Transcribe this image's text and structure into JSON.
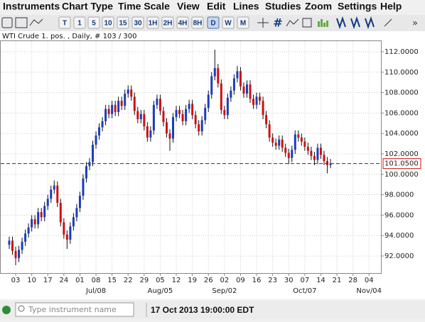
{
  "menu": [
    "Instruments",
    "Chart Type",
    "Time Scale",
    "View",
    "Edit",
    "Lines",
    "Studies",
    "Zoom",
    "Settings",
    "Help"
  ],
  "toolbar": {
    "timeframes": [
      "T",
      "1",
      "5",
      "10",
      "15",
      "30",
      "1H",
      "2H",
      "4H",
      "8H",
      "D",
      "W",
      "M"
    ]
  },
  "chart_data": {
    "type": "candlestick",
    "title": "WTI Crude 1. pos. , Daily, # 103 / 300",
    "up_color": "#1a3cc0",
    "down_color": "#cc1111",
    "open": [
      93.1,
      93.5,
      92.5,
      91.8,
      92.6,
      93.4,
      94.2,
      94.8,
      95.6,
      95.1,
      96.3,
      95.8,
      96.9,
      97.6,
      98.5,
      98.9,
      97.2,
      95.3,
      94.1,
      93.6,
      94.9,
      95.8,
      96.7,
      97.9,
      99.6,
      100.8,
      101.2,
      102.9,
      103.8,
      104.6,
      105.2,
      106.4,
      105.9,
      106.8,
      106.1,
      107.2,
      106.7,
      107.9,
      108.3,
      107.6,
      106.2,
      105.4,
      105.9,
      104.7,
      103.6,
      104.3,
      106.8,
      107.4,
      106.2,
      105.1,
      104.0,
      103.5,
      105.6,
      106.3,
      105.9,
      105.2,
      106.4,
      106.9,
      105.8,
      104.9,
      104.2,
      105.3,
      106.5,
      107.8,
      109.6,
      110.4,
      108.9,
      106.3,
      105.8,
      107.5,
      108.2,
      109.4,
      110.1,
      108.6,
      107.9,
      108.8,
      107.4,
      106.8,
      107.6,
      107.2,
      105.8,
      104.9,
      103.6,
      103.1,
      102.8,
      103.4,
      102.6,
      102.1,
      101.6,
      102.4,
      103.9,
      103.6,
      103.2,
      102.7,
      102.3,
      101.8,
      101.4,
      102.6,
      101.9,
      101.3,
      100.9
    ],
    "high": [
      93.9,
      93.9,
      92.9,
      93.0,
      93.8,
      94.6,
      95.2,
      96.0,
      96.0,
      96.7,
      96.7,
      97.3,
      98.0,
      98.9,
      99.4,
      99.3,
      97.6,
      95.7,
      94.5,
      95.3,
      96.2,
      97.1,
      98.3,
      100.0,
      101.2,
      101.6,
      103.3,
      104.2,
      105.0,
      105.6,
      106.8,
      106.8,
      107.2,
      107.2,
      107.6,
      107.6,
      108.3,
      108.7,
      108.7,
      108.0,
      106.6,
      106.3,
      106.3,
      105.1,
      104.7,
      107.2,
      107.8,
      107.8,
      106.6,
      105.5,
      104.4,
      106.0,
      106.7,
      106.7,
      106.3,
      106.8,
      107.3,
      107.3,
      106.2,
      105.3,
      105.7,
      106.9,
      108.2,
      110.0,
      112.2,
      110.8,
      109.3,
      106.7,
      107.9,
      108.6,
      109.8,
      110.6,
      110.5,
      109.0,
      109.2,
      109.2,
      107.8,
      108.0,
      108.0,
      107.6,
      106.2,
      105.3,
      104.0,
      103.5,
      103.8,
      103.8,
      103.0,
      102.5,
      102.8,
      104.3,
      104.3,
      104.0,
      103.6,
      103.1,
      102.7,
      102.2,
      103.0,
      103.0,
      102.3,
      101.7,
      101.5
    ],
    "low": [
      92.7,
      92.1,
      91.1,
      91.4,
      92.2,
      93.0,
      93.8,
      94.4,
      94.7,
      94.7,
      95.4,
      95.4,
      96.5,
      97.2,
      98.1,
      96.8,
      94.9,
      93.7,
      92.7,
      93.2,
      94.5,
      95.4,
      96.3,
      97.5,
      99.2,
      100.4,
      100.8,
      102.5,
      103.4,
      104.2,
      104.8,
      105.5,
      105.5,
      105.7,
      105.7,
      106.3,
      106.3,
      107.5,
      107.2,
      105.8,
      105.0,
      105.0,
      104.3,
      103.2,
      103.2,
      103.9,
      106.4,
      105.8,
      104.7,
      103.6,
      102.3,
      103.1,
      105.2,
      105.5,
      104.8,
      104.8,
      106.0,
      105.4,
      104.5,
      103.8,
      103.8,
      104.9,
      106.1,
      107.4,
      109.2,
      108.5,
      105.9,
      105.4,
      105.4,
      107.1,
      107.8,
      109.0,
      108.2,
      107.5,
      107.5,
      107.0,
      106.4,
      106.4,
      106.8,
      105.4,
      104.5,
      103.2,
      102.7,
      102.4,
      102.4,
      102.2,
      101.7,
      101.0,
      101.2,
      102.0,
      103.2,
      102.8,
      102.3,
      101.9,
      101.4,
      100.9,
      101.0,
      101.5,
      100.9,
      100.1,
      100.6
    ],
    "close": [
      93.5,
      92.5,
      91.8,
      92.6,
      93.4,
      94.2,
      94.8,
      95.6,
      95.1,
      96.3,
      95.8,
      96.9,
      97.6,
      98.5,
      98.9,
      97.2,
      95.3,
      94.1,
      93.6,
      94.9,
      95.8,
      96.7,
      97.9,
      99.6,
      100.8,
      101.2,
      102.9,
      103.8,
      104.6,
      105.2,
      106.4,
      105.9,
      106.8,
      106.1,
      107.2,
      106.7,
      107.9,
      108.3,
      107.6,
      106.2,
      105.4,
      105.9,
      104.7,
      103.6,
      104.3,
      106.8,
      107.4,
      106.2,
      105.1,
      104.0,
      103.5,
      105.6,
      106.3,
      105.9,
      105.2,
      106.4,
      106.9,
      105.8,
      104.9,
      104.2,
      105.3,
      106.5,
      107.8,
      109.6,
      110.4,
      108.9,
      106.3,
      105.8,
      107.5,
      108.2,
      109.4,
      110.1,
      108.6,
      107.9,
      108.8,
      107.4,
      106.8,
      107.6,
      107.2,
      105.8,
      104.9,
      103.6,
      103.1,
      102.8,
      103.4,
      102.6,
      102.1,
      101.6,
      102.4,
      103.9,
      103.6,
      103.2,
      102.7,
      102.3,
      101.8,
      101.4,
      102.6,
      101.9,
      101.3,
      100.9,
      101.05
    ],
    "ylim": [
      90.33,
      113.04
    ],
    "yticks": [
      {
        "value": 92,
        "label": "92.0000"
      },
      {
        "value": 94,
        "label": "94.0000"
      },
      {
        "value": 96,
        "label": "96.0000"
      },
      {
        "value": 98,
        "label": "98.0000"
      },
      {
        "value": 100,
        "label": "100.0000"
      },
      {
        "value": 102,
        "label": "102.0000"
      },
      {
        "value": 104,
        "label": "104.0000"
      },
      {
        "value": 106,
        "label": "106.0000"
      },
      {
        "value": 108,
        "label": "108.0000"
      },
      {
        "value": 110,
        "label": "110.0000"
      },
      {
        "value": 112,
        "label": "112.0000"
      }
    ],
    "price_line": {
      "value": 101.05,
      "label": "101.0500"
    },
    "grid": true,
    "date_labels": [
      "03",
      "10",
      "17",
      "24",
      "01",
      "08",
      "15",
      "22",
      "29",
      "05",
      "12",
      "19",
      "26",
      "02",
      "09",
      "16",
      "23",
      "30",
      "07",
      "14",
      "21",
      "28",
      "04"
    ],
    "month_labels": [
      "Jul/08",
      "Aug/05",
      "Sep/02",
      "Oct/07",
      "Nov/04"
    ]
  },
  "status_bar": {
    "search_placeholder": "Type instrument name",
    "timestamp": "17 Oct 2013 19:00:00 EDT"
  }
}
